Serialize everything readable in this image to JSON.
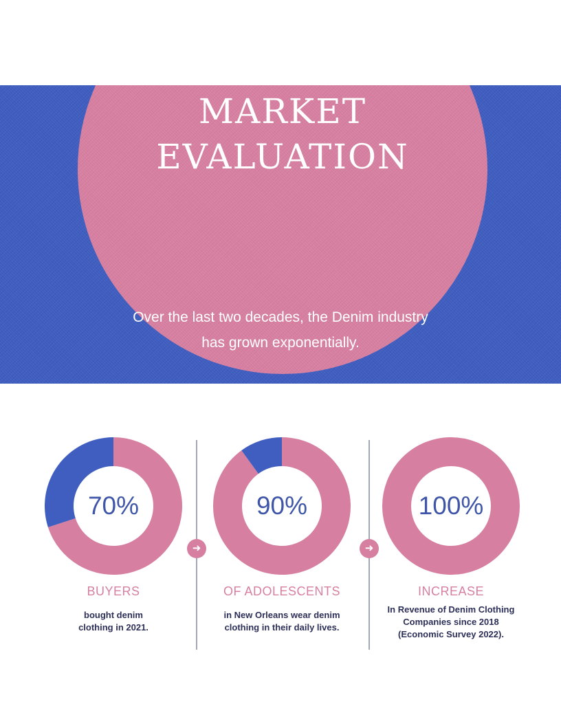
{
  "header": {
    "title_line1": "MARKET",
    "title_line2": "EVALUATION",
    "subtitle_line1": "Over the last two decades, the Denim industry",
    "subtitle_line2": "has grown exponentially."
  },
  "colors": {
    "blue": "#3f5ec0",
    "pink": "#d67fa0",
    "pct_text": "#3f56a8",
    "desc_text": "#2c2f58"
  },
  "arrow_icon": "arrow-right-icon",
  "chart_data": [
    {
      "type": "pie",
      "value_text": "70%",
      "label": "BUYERS",
      "description": [
        "bought denim",
        "clothing in 2021."
      ],
      "slices": [
        {
          "value": 70,
          "color": "#d67fa0"
        },
        {
          "value": 30,
          "color": "#3f5ec0"
        }
      ]
    },
    {
      "type": "pie",
      "value_text": "90%",
      "label": "OF ADOLESCENTS",
      "description": [
        "in New Orleans wear denim",
        "clothing in their daily lives."
      ],
      "slices": [
        {
          "value": 90,
          "color": "#d67fa0"
        },
        {
          "value": 10,
          "color": "#3f5ec0"
        }
      ]
    },
    {
      "type": "pie",
      "value_text": "100%",
      "label": "INCREASE",
      "description": [
        "In Revenue of Denim Clothing",
        "Companies since 2018",
        "(Economic Survey 2022)."
      ],
      "slices": [
        {
          "value": 100,
          "color": "#d67fa0"
        }
      ]
    }
  ]
}
